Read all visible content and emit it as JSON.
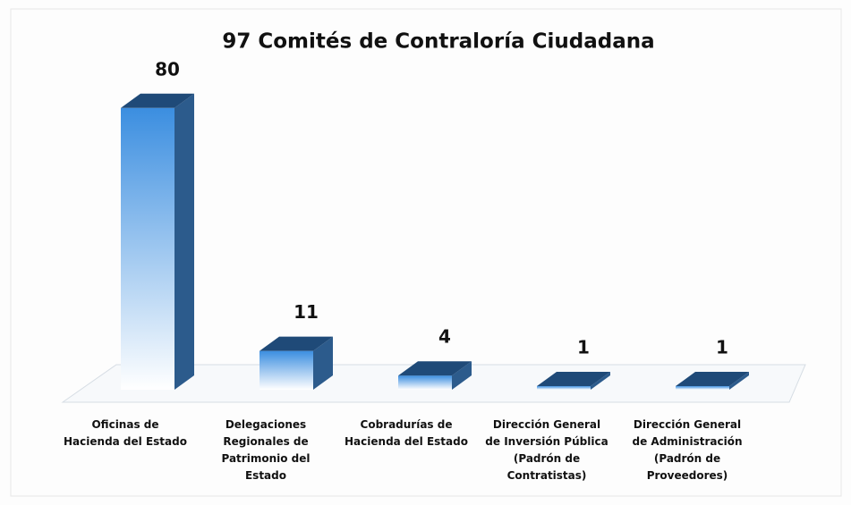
{
  "chart_data": {
    "type": "bar3d",
    "title": "97 Comités de Contraloría Ciudadana",
    "categories": [
      "Oficinas de Hacienda del Estado",
      "Delegaciones Regionales de Patrimonio del Estado",
      "Cobradurías de Hacienda del Estado",
      "Dirección General de Inversión Pública (Padrón de Contratistas)",
      "Dirección General de Administración (Padrón de Proveedores)"
    ],
    "values": [
      80,
      11,
      4,
      1,
      1
    ],
    "color": "#3b8ee0"
  }
}
